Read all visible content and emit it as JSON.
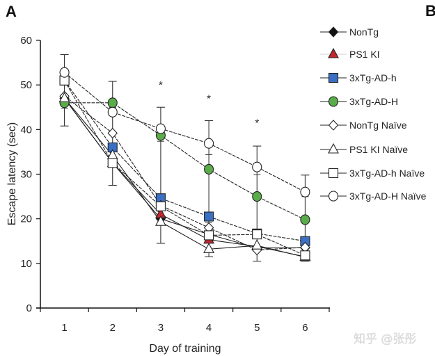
{
  "panel_labels": [
    "A",
    "B"
  ],
  "watermark": "知乎 @张彤",
  "chart_data": {
    "type": "line",
    "title": "",
    "xlabel": "Day of training",
    "ylabel": "Escape latency (sec)",
    "categories": [
      "1",
      "2",
      "3",
      "4",
      "5",
      "6"
    ],
    "ylim": [
      0,
      60
    ],
    "yticks": [
      "0",
      "10",
      "20",
      "30",
      "40",
      "50",
      "60"
    ],
    "grid": false,
    "legend_position": "right",
    "significance_markers": [
      {
        "day": "3",
        "label": "*",
        "y": 50
      },
      {
        "day": "4",
        "label": "*",
        "y": 47
      },
      {
        "day": "5",
        "label": "*",
        "y": 41.5
      }
    ],
    "series": [
      {
        "name": "NonTg",
        "marker": "diamond",
        "fill": "#111111",
        "line": "solid",
        "values": [
          47,
          32.5,
          20,
          16.5,
          13.5,
          13.5
        ]
      },
      {
        "name": "PS1 KI",
        "marker": "triangle",
        "fill": "#c0282d",
        "line": "solid",
        "values": [
          47,
          32.5,
          21,
          15.3,
          13.8,
          11.5
        ]
      },
      {
        "name": "3xTg-AD-h",
        "marker": "square",
        "fill": "#3a6fc4",
        "line": "dashed",
        "values": [
          51,
          36,
          24.6,
          20.5,
          16.7,
          15
        ]
      },
      {
        "name": "3xTg-AD-H",
        "marker": "circle",
        "fill": "#5aac4a",
        "line": "dashed",
        "values": [
          46,
          46,
          38.7,
          31.1,
          25,
          19.8
        ]
      },
      {
        "name": "NonTg Naïve",
        "marker": "diamond",
        "fill": "#ffffff",
        "line": "dashed",
        "values": [
          47.5,
          39.2,
          23,
          18,
          13,
          13.6
        ]
      },
      {
        "name": "PS1 KI Naïve",
        "marker": "triangle",
        "fill": "#ffffff",
        "line": "solid",
        "values": [
          47,
          34.2,
          19.3,
          13.2,
          14,
          11.4
        ]
      },
      {
        "name": "3xTg-AD-h Naïve",
        "marker": "square",
        "fill": "#ffffff",
        "line": "dashed",
        "values": [
          51,
          32.5,
          22.8,
          16.3,
          16.5,
          11.8
        ]
      },
      {
        "name": "3xTg-AD-H Naïve",
        "marker": "circle",
        "fill": "#ffffff",
        "line": "dashed",
        "values": [
          52.8,
          43.9,
          40.2,
          36.9,
          31.6,
          26
        ]
      }
    ],
    "error_bars": [
      {
        "day": "1",
        "low": 40.8,
        "high": 56.8
      },
      {
        "day": "2",
        "low": 27.5,
        "high": 50.8
      },
      {
        "day": "3",
        "low": 14.5,
        "high": 45
      },
      {
        "day": "4",
        "low": 11.5,
        "high": 42
      },
      {
        "day": "5",
        "low": 10.5,
        "high": 36.3
      },
      {
        "day": "6",
        "low": 10.5,
        "high": 29.8
      }
    ]
  }
}
